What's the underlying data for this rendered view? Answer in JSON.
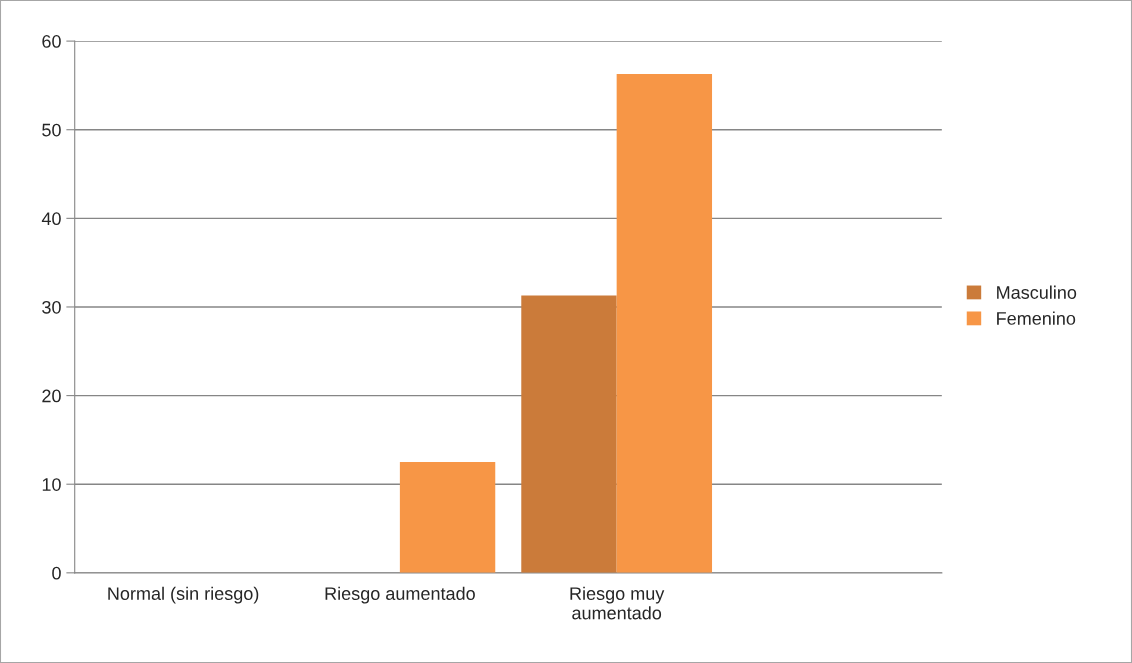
{
  "chart_data": {
    "type": "bar",
    "categories": [
      "Normal (sin riesgo)",
      "Riesgo aumentado",
      "Riesgo muy\naumentado",
      null
    ],
    "series": [
      {
        "name": "Masculino",
        "color": "#cb7b3a",
        "values": [
          0,
          0,
          31.3,
          0
        ]
      },
      {
        "name": "Femenino",
        "color": "#f79646",
        "values": [
          0,
          12.5,
          56.3,
          0
        ]
      }
    ],
    "ylim": [
      0,
      60
    ],
    "yticks": [
      0,
      10,
      20,
      30,
      40,
      50,
      60
    ],
    "grid": "y",
    "legend": "right"
  }
}
